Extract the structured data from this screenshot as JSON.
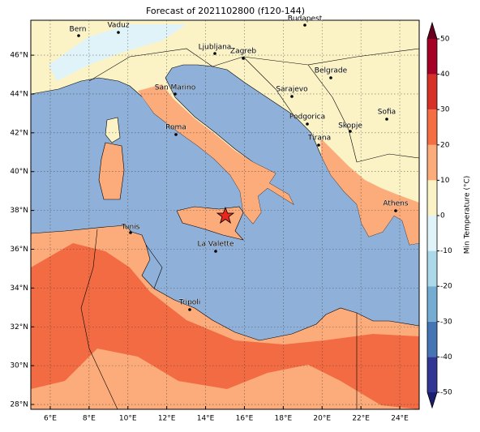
{
  "chart_data": {
    "type": "map",
    "title": "Forecast of 2021102800 (f120-144)",
    "xlim": [
      5,
      25
    ],
    "ylim": [
      27.75,
      47.8
    ],
    "xticks": [
      {
        "value": 6,
        "label": "6°E"
      },
      {
        "value": 8,
        "label": "8°E"
      },
      {
        "value": 10,
        "label": "10°E"
      },
      {
        "value": 12,
        "label": "12°E"
      },
      {
        "value": 14,
        "label": "14°E"
      },
      {
        "value": 16,
        "label": "16°E"
      },
      {
        "value": 18,
        "label": "18°E"
      },
      {
        "value": 20,
        "label": "20°E"
      },
      {
        "value": 22,
        "label": "22°E"
      },
      {
        "value": 24,
        "label": "24°E"
      }
    ],
    "yticks": [
      {
        "value": 28,
        "label": "28°N"
      },
      {
        "value": 30,
        "label": "30°N"
      },
      {
        "value": 32,
        "label": "32°N"
      },
      {
        "value": 34,
        "label": "34°N"
      },
      {
        "value": 36,
        "label": "36°N"
      },
      {
        "value": 38,
        "label": "38°N"
      },
      {
        "value": 40,
        "label": "40°N"
      },
      {
        "value": 42,
        "label": "42°N"
      },
      {
        "value": 44,
        "label": "44°N"
      },
      {
        "value": 46,
        "label": "46°N"
      }
    ],
    "grid": true,
    "cities": [
      "Bern",
      "Vaduz",
      "Budapest",
      "Ljubljana",
      "Zagreb",
      "Belgrade",
      "San Marino",
      "Sarajevo",
      "Sofia",
      "Podgorica",
      "Skopje",
      "Roma",
      "Tirana",
      "Athens",
      "Tunis",
      "La Valette",
      "Tripoli"
    ],
    "colorbar": {
      "label": "Min Temperature (°C)",
      "lim": [
        -50,
        50
      ],
      "ticks": [
        -50,
        -40,
        -30,
        -20,
        -10,
        0,
        10,
        20,
        30,
        40,
        50
      ],
      "colors": [
        "#313695",
        "#4575b4",
        "#74add1",
        "#abd9e9",
        "#e0f3f8",
        "#fbf3c6",
        "#fcab7a",
        "#f46d43",
        "#d73027",
        "#a50026"
      ],
      "extend_colors": [
        "#1b1e6e",
        "#67001f"
      ]
    }
  }
}
